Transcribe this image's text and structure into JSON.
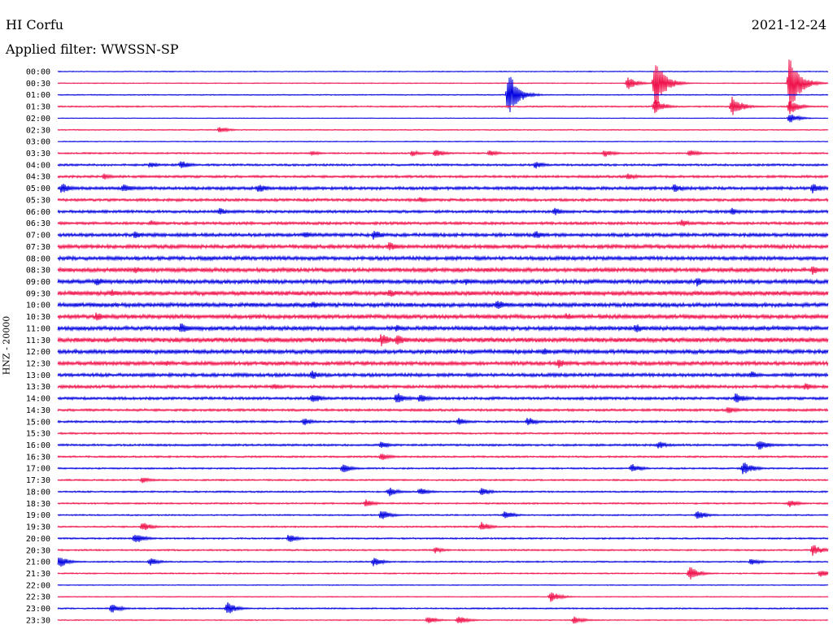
{
  "header": {
    "station": "HI Corfu",
    "date": "2021-12-24",
    "filter": "Applied filter: WWSSN-SP"
  },
  "channel_label": "HNZ - 20000",
  "colors": {
    "trace_a": "#0000e0",
    "trace_b": "#f0104a",
    "text": "#000000",
    "background": "#ffffff"
  },
  "chart_data": {
    "type": "line",
    "title": "",
    "xlabel": "",
    "ylabel": "HNZ - 20000",
    "grid": false,
    "legend": "none",
    "row_labels": [
      "00:00",
      "00:30",
      "01:00",
      "01:30",
      "02:00",
      "02:30",
      "03:00",
      "03:30",
      "04:00",
      "04:30",
      "05:00",
      "05:30",
      "06:00",
      "06:30",
      "07:00",
      "07:30",
      "08:00",
      "08:30",
      "09:00",
      "09:30",
      "10:00",
      "10:30",
      "11:00",
      "11:30",
      "12:00",
      "12:30",
      "13:00",
      "13:30",
      "14:00",
      "14:30",
      "15:00",
      "15:30",
      "16:00",
      "16:30",
      "17:00",
      "17:30",
      "18:00",
      "18:30",
      "19:00",
      "19:30",
      "20:00",
      "20:30",
      "21:00",
      "21:30",
      "22:00",
      "22:30",
      "23:00",
      "23:30"
    ],
    "row_minutes": 30,
    "row_colors": [
      "trace_a",
      "trace_b"
    ],
    "noise_level": [
      0.5,
      0.5,
      0.6,
      0.8,
      0.4,
      0.6,
      0.5,
      0.9,
      1.2,
      1.4,
      1.8,
      1.6,
      1.6,
      1.6,
      2.0,
      2.2,
      2.2,
      2.4,
      2.4,
      2.6,
      2.4,
      2.4,
      2.4,
      2.8,
      2.4,
      2.2,
      2.0,
      1.8,
      1.6,
      1.4,
      1.2,
      1.0,
      1.2,
      1.0,
      0.9,
      0.9,
      0.9,
      0.9,
      0.8,
      0.9,
      0.9,
      0.9,
      0.8,
      0.7,
      0.5,
      0.5,
      0.8,
      0.6
    ],
    "events": [
      {
        "row": 1,
        "t": 0.74,
        "amp": 8
      },
      {
        "row": 1,
        "t": 0.775,
        "amp": 35
      },
      {
        "row": 1,
        "t": 0.95,
        "amp": 40
      },
      {
        "row": 2,
        "t": 0.585,
        "amp": 30
      },
      {
        "row": 3,
        "t": 0.775,
        "amp": 10
      },
      {
        "row": 3,
        "t": 0.875,
        "amp": 14
      },
      {
        "row": 3,
        "t": 0.95,
        "amp": 10
      },
      {
        "row": 4,
        "t": 0.95,
        "amp": 6
      },
      {
        "row": 5,
        "t": 0.21,
        "amp": 4
      },
      {
        "row": 7,
        "t": 0.33,
        "amp": 3
      },
      {
        "row": 7,
        "t": 0.46,
        "amp": 4
      },
      {
        "row": 7,
        "t": 0.49,
        "amp": 5
      },
      {
        "row": 7,
        "t": 0.56,
        "amp": 4
      },
      {
        "row": 7,
        "t": 0.71,
        "amp": 5
      },
      {
        "row": 7,
        "t": 0.82,
        "amp": 5
      },
      {
        "row": 8,
        "t": 0.12,
        "amp": 4
      },
      {
        "row": 8,
        "t": 0.16,
        "amp": 6
      },
      {
        "row": 8,
        "t": 0.62,
        "amp": 5
      },
      {
        "row": 9,
        "t": 0.06,
        "amp": 4
      },
      {
        "row": 9,
        "t": 0.74,
        "amp": 5
      },
      {
        "row": 10,
        "t": 0.005,
        "amp": 7
      },
      {
        "row": 10,
        "t": 0.085,
        "amp": 6
      },
      {
        "row": 10,
        "t": 0.26,
        "amp": 6
      },
      {
        "row": 10,
        "t": 0.8,
        "amp": 6
      },
      {
        "row": 10,
        "t": 0.98,
        "amp": 7
      },
      {
        "row": 11,
        "t": 0.47,
        "amp": 4
      },
      {
        "row": 12,
        "t": 0.21,
        "amp": 5
      },
      {
        "row": 12,
        "t": 0.645,
        "amp": 5
      },
      {
        "row": 12,
        "t": 0.875,
        "amp": 5
      },
      {
        "row": 13,
        "t": 0.12,
        "amp": 4
      },
      {
        "row": 13,
        "t": 0.81,
        "amp": 5
      },
      {
        "row": 14,
        "t": 0.1,
        "amp": 5
      },
      {
        "row": 14,
        "t": 0.32,
        "amp": 5
      },
      {
        "row": 14,
        "t": 0.41,
        "amp": 7
      },
      {
        "row": 14,
        "t": 0.62,
        "amp": 6
      },
      {
        "row": 15,
        "t": 0.43,
        "amp": 6
      },
      {
        "row": 17,
        "t": 0.1,
        "amp": 5
      },
      {
        "row": 17,
        "t": 0.98,
        "amp": 6
      },
      {
        "row": 18,
        "t": 0.05,
        "amp": 6
      },
      {
        "row": 18,
        "t": 0.53,
        "amp": 5
      },
      {
        "row": 18,
        "t": 0.83,
        "amp": 6
      },
      {
        "row": 19,
        "t": 0.07,
        "amp": 5
      },
      {
        "row": 19,
        "t": 0.43,
        "amp": 6
      },
      {
        "row": 20,
        "t": 0.33,
        "amp": 5
      },
      {
        "row": 20,
        "t": 0.57,
        "amp": 7
      },
      {
        "row": 21,
        "t": 0.05,
        "amp": 6
      },
      {
        "row": 21,
        "t": 0.66,
        "amp": 5
      },
      {
        "row": 22,
        "t": 0.16,
        "amp": 7
      },
      {
        "row": 22,
        "t": 0.44,
        "amp": 5
      },
      {
        "row": 22,
        "t": 0.75,
        "amp": 6
      },
      {
        "row": 23,
        "t": 0.42,
        "amp": 9
      },
      {
        "row": 23,
        "t": 0.44,
        "amp": 8
      },
      {
        "row": 24,
        "t": 0.63,
        "amp": 5
      },
      {
        "row": 25,
        "t": 0.14,
        "amp": 4
      },
      {
        "row": 25,
        "t": 0.65,
        "amp": 6
      },
      {
        "row": 26,
        "t": 0.33,
        "amp": 6
      },
      {
        "row": 26,
        "t": 0.9,
        "amp": 5
      },
      {
        "row": 27,
        "t": 0.28,
        "amp": 4
      },
      {
        "row": 27,
        "t": 0.97,
        "amp": 5
      },
      {
        "row": 28,
        "t": 0.33,
        "amp": 7
      },
      {
        "row": 28,
        "t": 0.44,
        "amp": 8
      },
      {
        "row": 28,
        "t": 0.47,
        "amp": 6
      },
      {
        "row": 28,
        "t": 0.88,
        "amp": 7
      },
      {
        "row": 29,
        "t": 0.87,
        "amp": 5
      },
      {
        "row": 30,
        "t": 0.32,
        "amp": 5
      },
      {
        "row": 30,
        "t": 0.52,
        "amp": 5
      },
      {
        "row": 30,
        "t": 0.61,
        "amp": 6
      },
      {
        "row": 32,
        "t": 0.42,
        "amp": 5
      },
      {
        "row": 32,
        "t": 0.78,
        "amp": 5
      },
      {
        "row": 32,
        "t": 0.91,
        "amp": 7
      },
      {
        "row": 33,
        "t": 0.42,
        "amp": 5
      },
      {
        "row": 34,
        "t": 0.37,
        "amp": 6
      },
      {
        "row": 34,
        "t": 0.745,
        "amp": 6
      },
      {
        "row": 34,
        "t": 0.89,
        "amp": 9
      },
      {
        "row": 35,
        "t": 0.11,
        "amp": 4
      },
      {
        "row": 36,
        "t": 0.43,
        "amp": 6
      },
      {
        "row": 36,
        "t": 0.47,
        "amp": 5
      },
      {
        "row": 36,
        "t": 0.55,
        "amp": 5
      },
      {
        "row": 37,
        "t": 0.4,
        "amp": 5
      },
      {
        "row": 37,
        "t": 0.95,
        "amp": 5
      },
      {
        "row": 38,
        "t": 0.42,
        "amp": 7
      },
      {
        "row": 38,
        "t": 0.58,
        "amp": 6
      },
      {
        "row": 38,
        "t": 0.83,
        "amp": 6
      },
      {
        "row": 39,
        "t": 0.11,
        "amp": 6
      },
      {
        "row": 39,
        "t": 0.55,
        "amp": 6
      },
      {
        "row": 40,
        "t": 0.1,
        "amp": 7
      },
      {
        "row": 40,
        "t": 0.3,
        "amp": 6
      },
      {
        "row": 41,
        "t": 0.49,
        "amp": 4
      },
      {
        "row": 41,
        "t": 0.98,
        "amp": 8
      },
      {
        "row": 42,
        "t": 0.002,
        "amp": 8
      },
      {
        "row": 42,
        "t": 0.12,
        "amp": 5
      },
      {
        "row": 42,
        "t": 0.41,
        "amp": 6
      },
      {
        "row": 42,
        "t": 0.9,
        "amp": 5
      },
      {
        "row": 43,
        "t": 0.82,
        "amp": 9
      },
      {
        "row": 43,
        "t": 0.99,
        "amp": 5
      },
      {
        "row": 45,
        "t": 0.64,
        "amp": 7
      },
      {
        "row": 46,
        "t": 0.07,
        "amp": 6
      },
      {
        "row": 46,
        "t": 0.22,
        "amp": 8
      },
      {
        "row": 47,
        "t": 0.48,
        "amp": 5
      },
      {
        "row": 47,
        "t": 0.52,
        "amp": 6
      },
      {
        "row": 47,
        "t": 0.67,
        "amp": 5
      }
    ]
  }
}
